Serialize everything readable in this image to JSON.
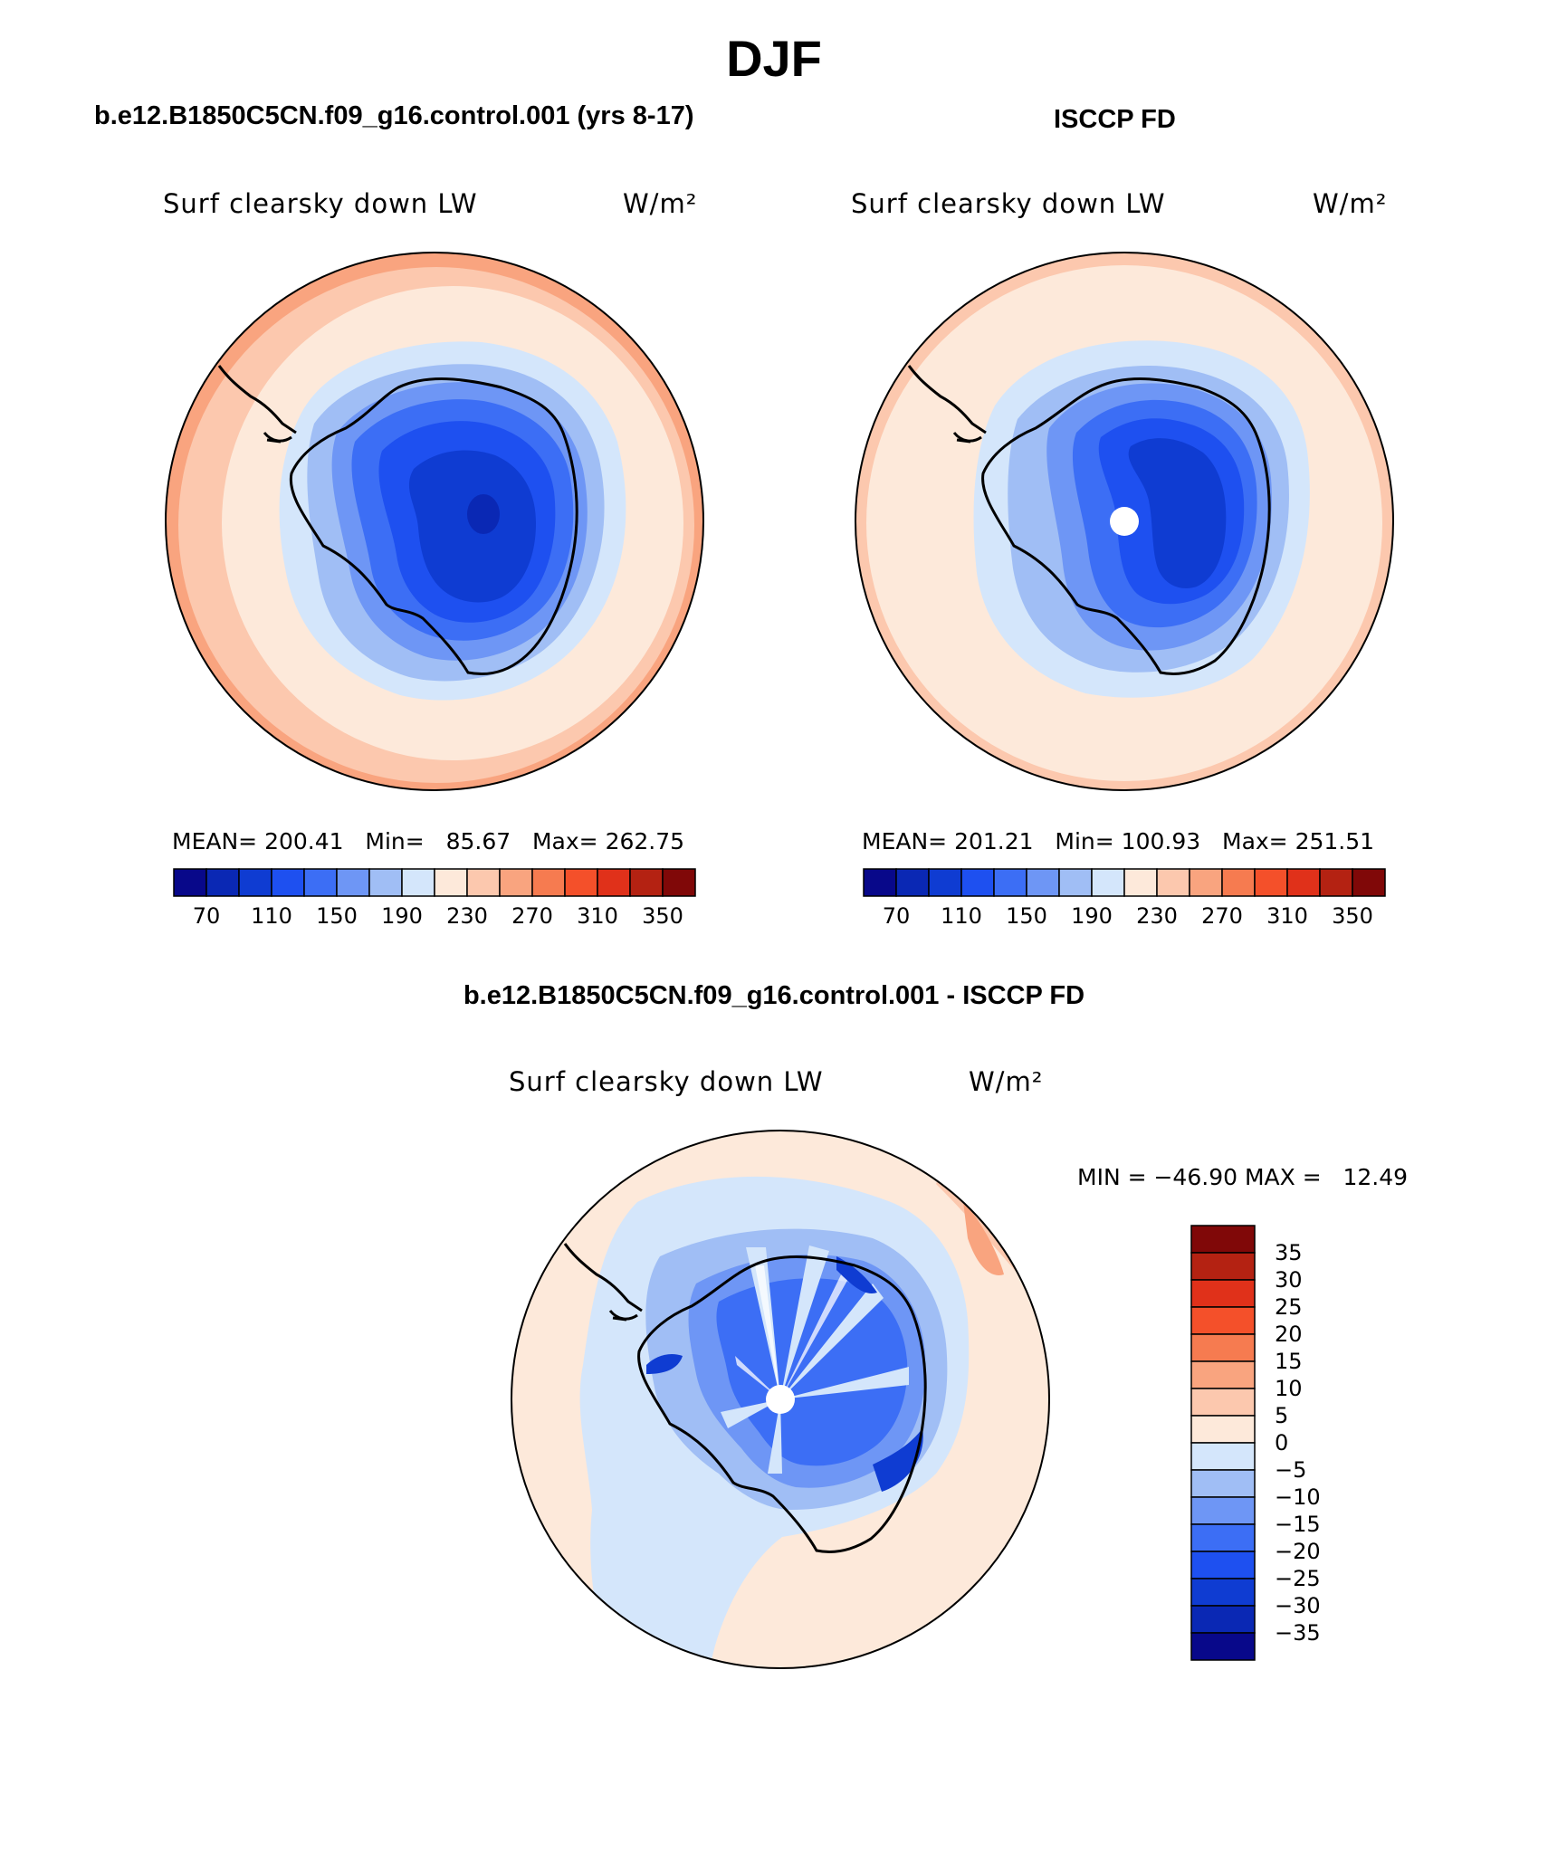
{
  "figure_title": "DJF",
  "panels": [
    {
      "case_title": "b.e12.B1850C5CN.f09_g16.control.001 (yrs 8-17)",
      "variable": "Surf clearsky down LW",
      "units": "W/m²",
      "mean_label": "MEAN=",
      "mean_value": "200.41",
      "min_label": "Min=",
      "min_value": "85.67",
      "max_label": "Max=",
      "max_value": "262.75"
    },
    {
      "case_title": "ISCCP FD",
      "variable": "Surf clearsky down LW",
      "units": "W/m²",
      "mean_label": "MEAN=",
      "mean_value": "201.21",
      "min_label": "Min=",
      "min_value": "100.93",
      "max_label": "Max=",
      "max_value": "251.51"
    },
    {
      "case_title": "b.e12.B1850C5CN.f09_g16.control.001 - ISCCP FD",
      "variable": "Surf clearsky down LW",
      "units": "W/m²",
      "minmax_text": "MIN = −46.90 MAX =   12.49"
    }
  ],
  "abs_colorbar": {
    "colors": [
      "#08088a",
      "#0a28b4",
      "#0f3cd2",
      "#1e50f0",
      "#3c6ef5",
      "#6e96f5",
      "#a0bef5",
      "#d4e6fb",
      "#fde9da",
      "#fcc8ae",
      "#f9a47f",
      "#f67b50",
      "#f4502a",
      "#e0311a",
      "#b42212",
      "#800808"
    ],
    "tick_labels": [
      "70",
      "110",
      "150",
      "190",
      "230",
      "270",
      "310",
      "350"
    ]
  },
  "diff_colorbar": {
    "colors": [
      "#08088a",
      "#0a28b4",
      "#0f3cd2",
      "#1e50f0",
      "#3c6ef5",
      "#6e96f5",
      "#a0bef5",
      "#d4e6fb",
      "#fde9da",
      "#fcc8ae",
      "#f9a47f",
      "#f67b50",
      "#f4502a",
      "#e0311a",
      "#b42212",
      "#800808"
    ],
    "tick_labels": [
      "35",
      "30",
      "25",
      "20",
      "15",
      "10",
      "5",
      "0",
      "−5",
      "−10",
      "−15",
      "−20",
      "−25",
      "−30",
      "−35"
    ]
  }
}
